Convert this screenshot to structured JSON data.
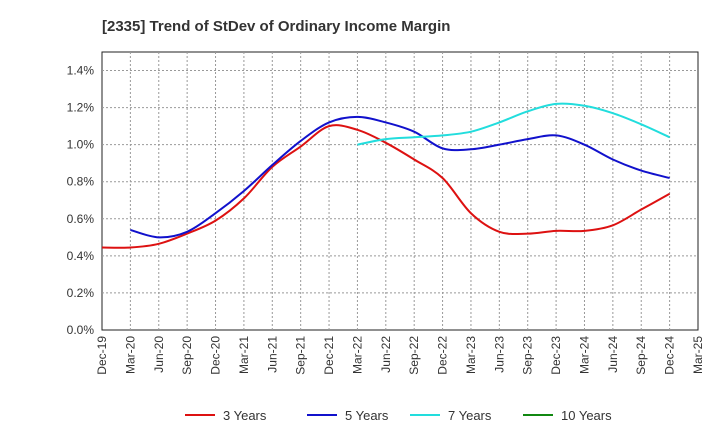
{
  "chart_data": {
    "type": "line",
    "title": "[2335]  Trend of StDev of Ordinary Income Margin",
    "xlabel": "",
    "ylabel": "",
    "categories": [
      "Dec-19",
      "Mar-20",
      "Jun-20",
      "Sep-20",
      "Dec-20",
      "Mar-21",
      "Jun-21",
      "Sep-21",
      "Dec-21",
      "Mar-22",
      "Jun-22",
      "Sep-22",
      "Dec-22",
      "Mar-23",
      "Jun-23",
      "Sep-23",
      "Dec-23",
      "Mar-24",
      "Jun-24",
      "Sep-24",
      "Dec-24",
      "Mar-25"
    ],
    "y_ticks": [
      "0.0%",
      "0.2%",
      "0.4%",
      "0.6%",
      "0.8%",
      "1.0%",
      "1.2%",
      "1.4%"
    ],
    "ylim": [
      0,
      1.5
    ],
    "grid": true,
    "legend_position": "bottom",
    "series": [
      {
        "name": "3 Years",
        "color": "#dd1111",
        "values": [
          0.445,
          0.445,
          0.465,
          0.52,
          0.59,
          0.71,
          0.88,
          0.99,
          1.1,
          1.08,
          1.01,
          0.92,
          0.82,
          0.63,
          0.53,
          0.52,
          0.535,
          0.535,
          0.565,
          0.65,
          0.735,
          null
        ]
      },
      {
        "name": "5 Years",
        "color": "#1111cc",
        "values": [
          null,
          0.54,
          0.5,
          0.53,
          0.63,
          0.75,
          0.89,
          1.02,
          1.12,
          1.15,
          1.12,
          1.07,
          0.98,
          0.975,
          1.0,
          1.03,
          1.05,
          1.0,
          0.92,
          0.86,
          0.82,
          null
        ]
      },
      {
        "name": "7 Years",
        "color": "#22dddd",
        "values": [
          null,
          null,
          null,
          null,
          null,
          null,
          null,
          null,
          null,
          1.0,
          1.03,
          1.04,
          1.05,
          1.07,
          1.12,
          1.18,
          1.22,
          1.21,
          1.17,
          1.11,
          1.04,
          null
        ]
      },
      {
        "name": "10 Years",
        "color": "#118811",
        "values": [
          null,
          null,
          null,
          null,
          null,
          null,
          null,
          null,
          null,
          null,
          null,
          null,
          null,
          null,
          null,
          null,
          null,
          null,
          null,
          null,
          null,
          null
        ]
      }
    ]
  }
}
